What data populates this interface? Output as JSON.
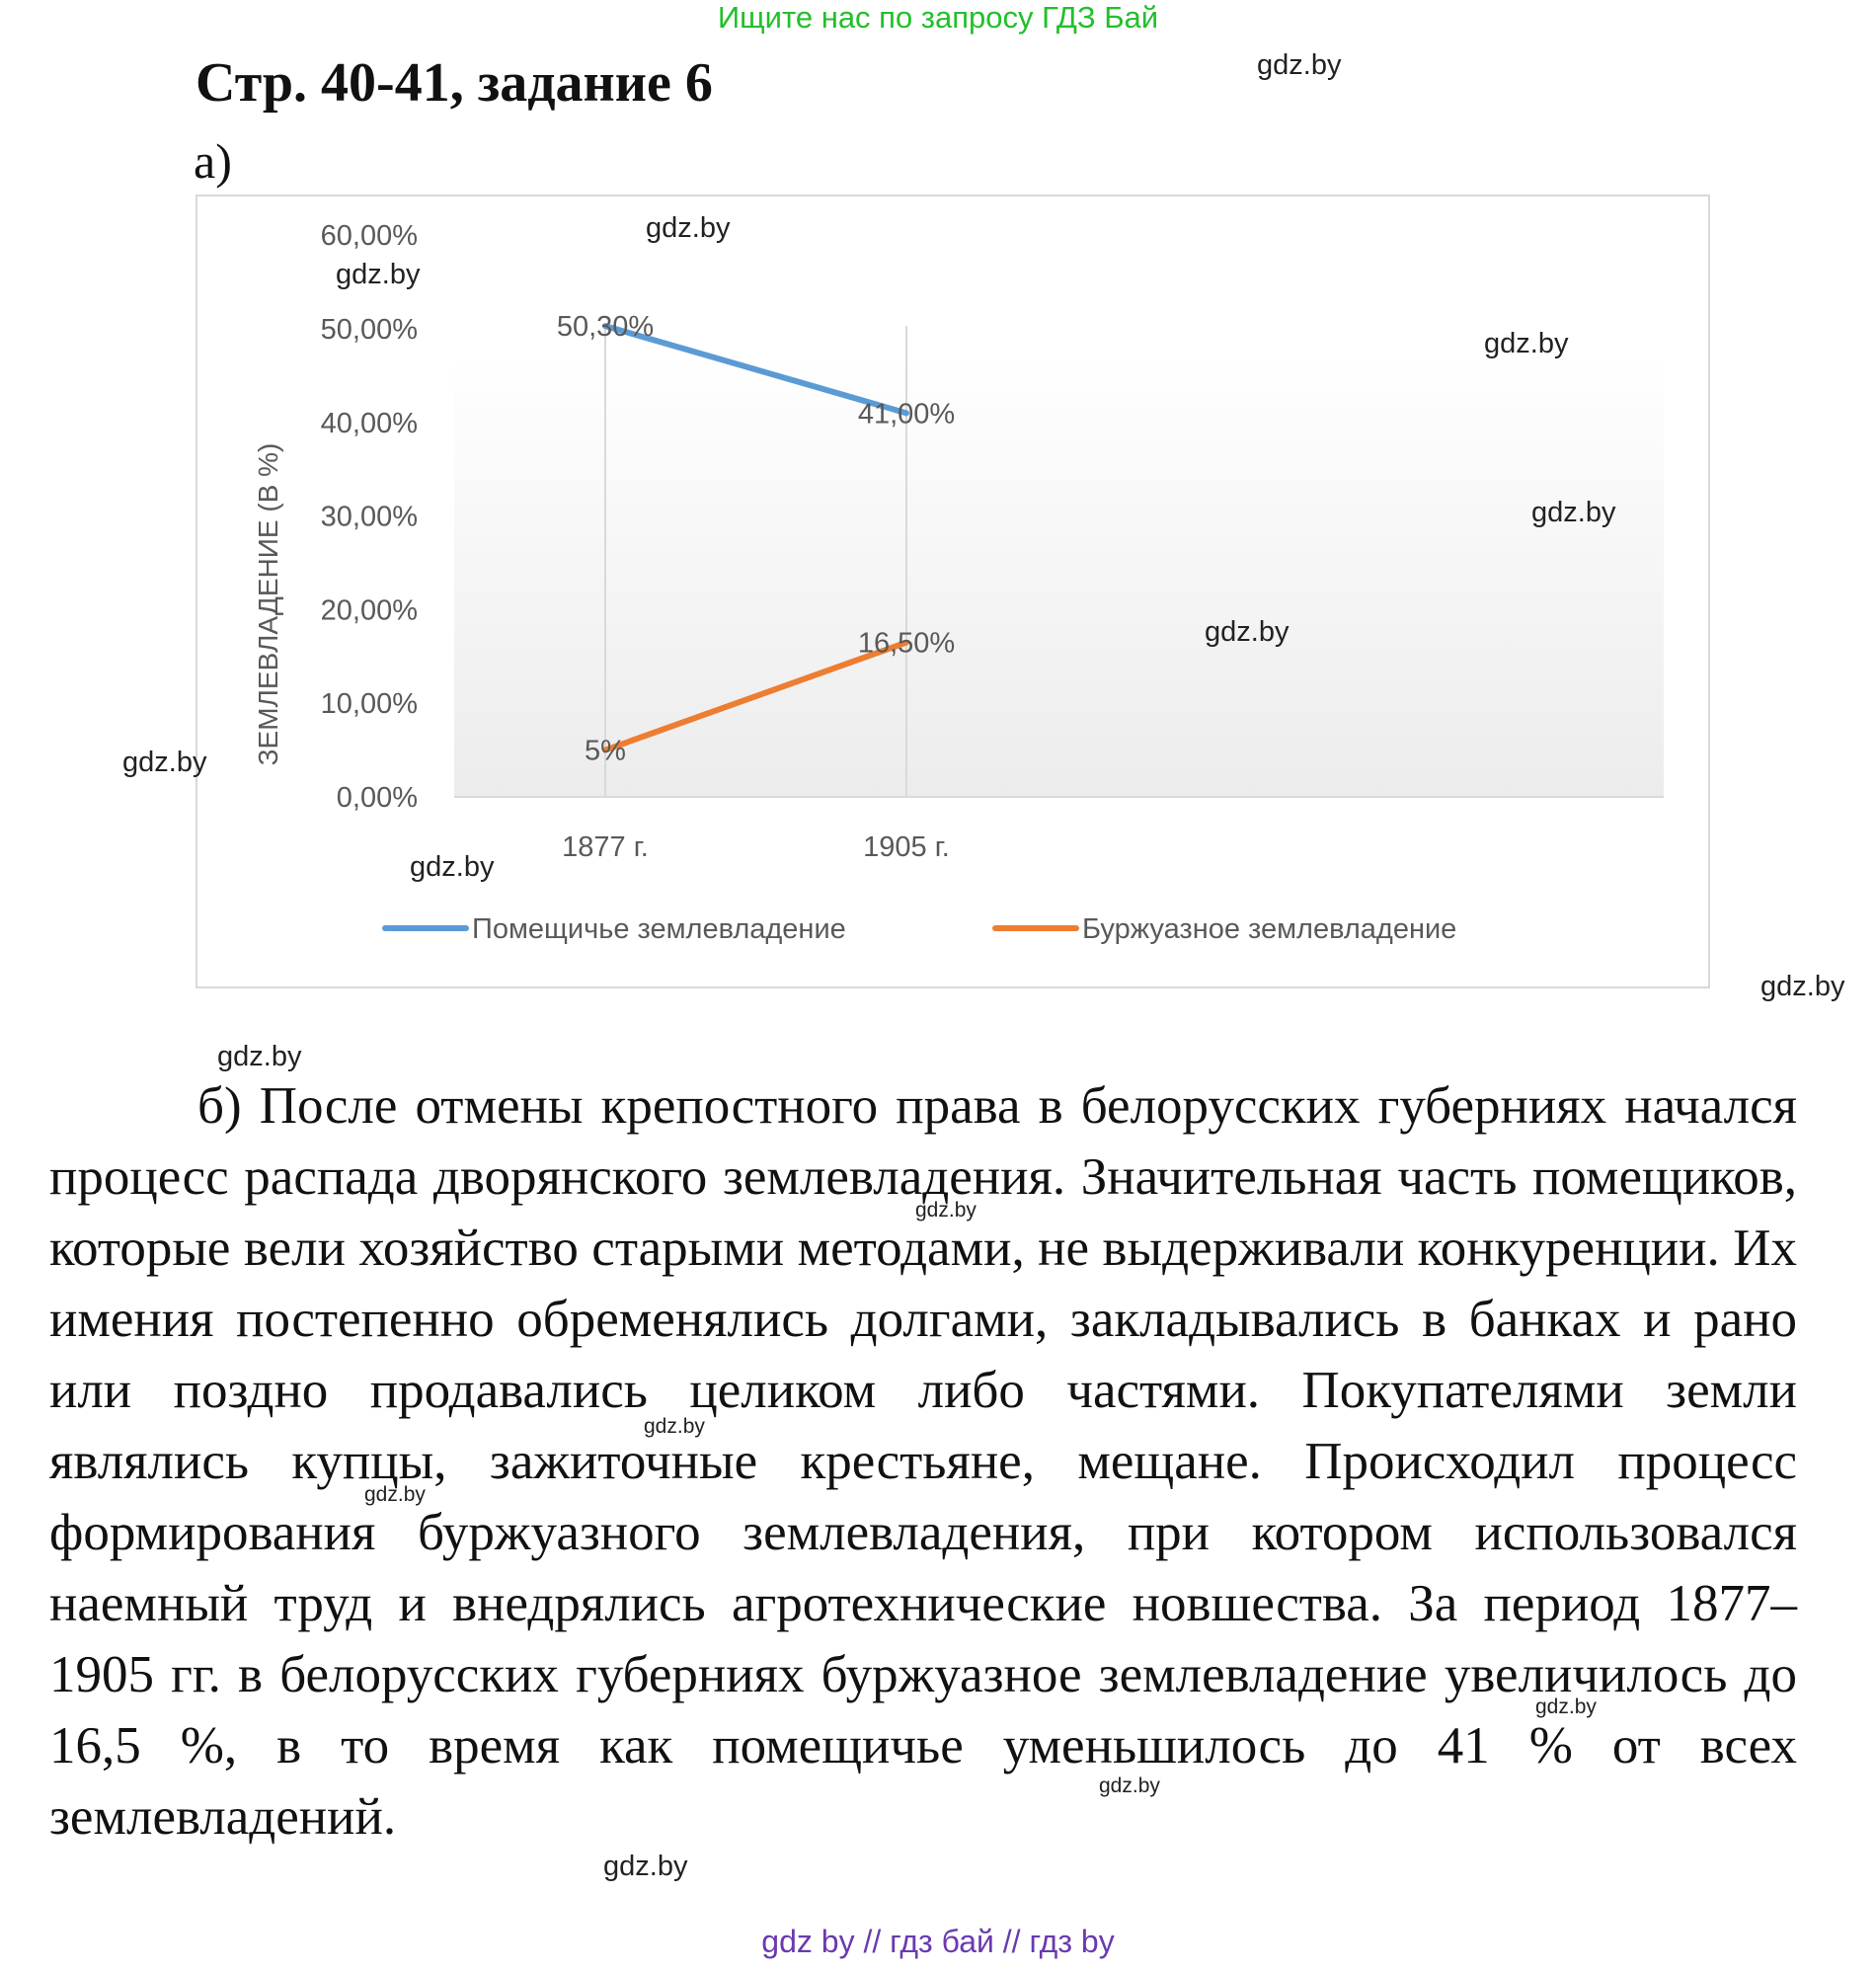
{
  "header": {
    "banner": "Ищите нас по запросу ГДЗ Бай",
    "title": "Стр. 40-41, задание 6",
    "part_a": "а)"
  },
  "chart_data": {
    "type": "line",
    "categories": [
      "1877 г.",
      "1905 г."
    ],
    "series": [
      {
        "name": "Помещичье землевладение",
        "values": [
          50.3,
          41.0
        ],
        "labels": [
          "50,30%",
          "41,00%"
        ],
        "color": "#5b9bd5"
      },
      {
        "name": "Буржуазное землевладение",
        "values": [
          5,
          16.5
        ],
        "labels": [
          "5%",
          "16,50%"
        ],
        "color": "#ed7d31"
      }
    ],
    "ylabel": "ЗЕМЛЕВЛАДЕНИЕ (В %)",
    "yticks": [
      "0,00%",
      "10,00%",
      "20,00%",
      "30,00%",
      "40,00%",
      "50,00%",
      "60,00%"
    ],
    "ylim": [
      0,
      60
    ],
    "legend_position": "bottom",
    "grid": "vertical"
  },
  "part_b": {
    "text": "б) После отмены крепостного права в белорусских губерниях начался процесс распада дворянского землевладения. Значительная часть помещиков, которые вели хозяйство старыми методами, не выдерживали конкуренции. Их имения постепенно обременялись долгами, закладывались в банках и рано или поздно продавались целиком либо частями. Покупателями земли являлись купцы, зажиточные крестьяне, мещане. Происходил процесс формирования буржуазного землевладения, при котором использовался наемный труд и внедрялись агротехнические новшества. За период 1877–1905 гг. в белорусских губерниях буржуазное землевладение увеличилось до 16,5 %, в то время как помещичье уменьшилось до 41 % от всех землевладений."
  },
  "watermark": "gdz.by",
  "footer": {
    "banner": "gdz by  //  гдз бай  //  гдз by"
  }
}
